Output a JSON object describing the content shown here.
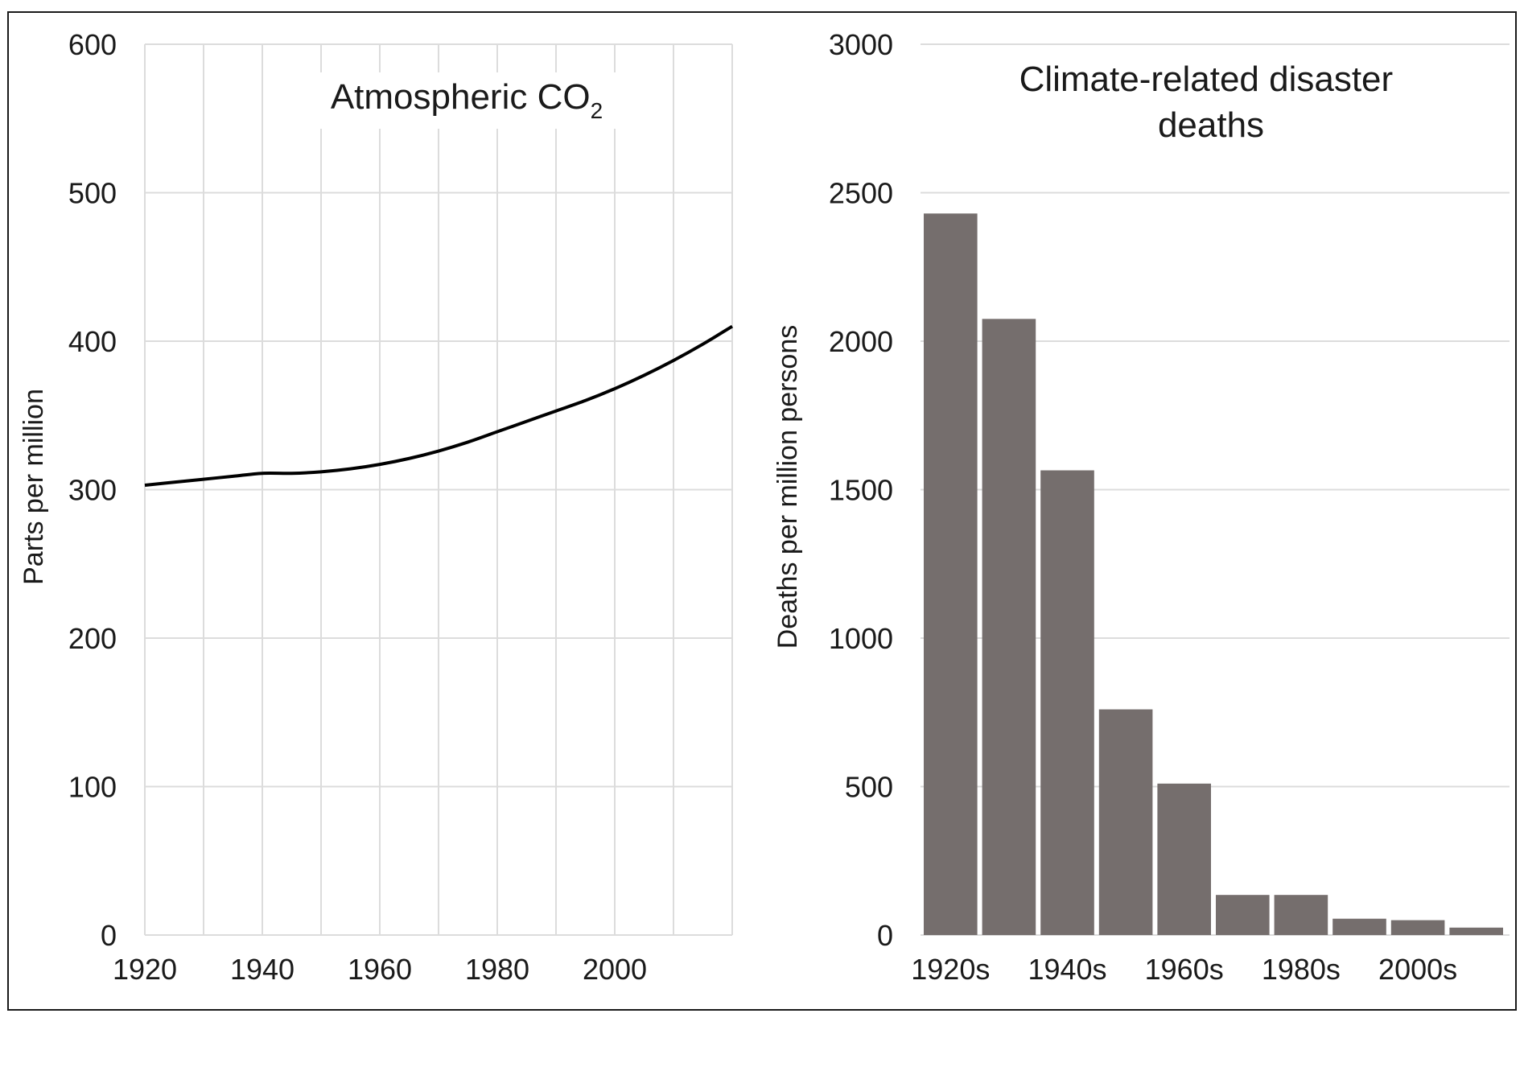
{
  "chart_data": [
    {
      "type": "line",
      "title": "Atmospheric CO",
      "title_subscript": "2",
      "xlabel": "",
      "ylabel": "Parts per million",
      "xlim": [
        1920,
        2020
      ],
      "ylim": [
        0,
        600
      ],
      "yticks": [
        0,
        100,
        200,
        300,
        400,
        500,
        600
      ],
      "xticks": [
        1920,
        1940,
        1960,
        1980,
        2000
      ],
      "x": [
        1920,
        1925,
        1930,
        1935,
        1940,
        1945,
        1950,
        1955,
        1960,
        1965,
        1970,
        1975,
        1980,
        1985,
        1990,
        1995,
        2000,
        2005,
        2010,
        2015,
        2020
      ],
      "y": [
        303,
        305,
        307,
        309,
        311,
        311,
        312,
        314,
        317,
        321,
        326,
        332,
        339,
        346,
        353,
        360,
        368,
        377,
        387,
        398,
        410
      ],
      "grid": true,
      "color": "#000000"
    },
    {
      "type": "bar",
      "title": "Climate-related disaster deaths",
      "title_lines": [
        "Climate-related disaster",
        "deaths"
      ],
      "xlabel": "",
      "ylabel": "Deaths per million persons",
      "ylim": [
        0,
        3000
      ],
      "yticks": [
        0,
        500,
        1000,
        1500,
        2000,
        2500,
        3000
      ],
      "categories": [
        "1920s",
        "1930s",
        "1940s",
        "1950s",
        "1960s",
        "1970s",
        "1980s",
        "1990s",
        "2000s",
        "2010s"
      ],
      "category_labels_shown": [
        "1920s",
        "1940s",
        "1960s",
        "1980s",
        "2000s"
      ],
      "values": [
        2430,
        2075,
        1565,
        760,
        510,
        135,
        135,
        55,
        50,
        25
      ],
      "grid": true,
      "color": "#756e6d"
    }
  ]
}
